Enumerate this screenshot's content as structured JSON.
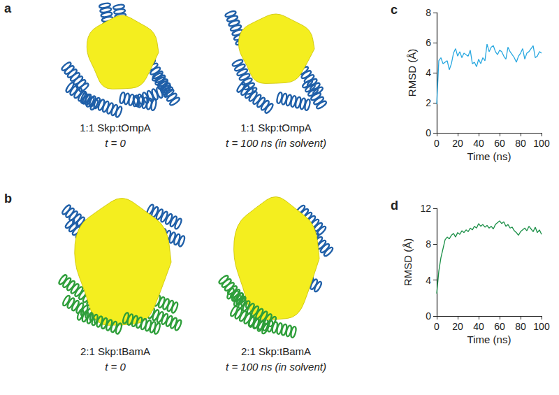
{
  "images": [
    {
      "panel": "a",
      "items": [
        {
          "caption": "1:1 Skp:tOmpA",
          "time": "t = 0"
        },
        {
          "caption": "1:1 Skp:tOmpA",
          "time": "t = 100 ns (in solvent)"
        }
      ]
    },
    {
      "panel": "b",
      "items": [
        {
          "caption": "2:1 Skp:tBamA",
          "time": "t = 0"
        },
        {
          "caption": "2:1 Skp:tBamA",
          "time": "t = 100 ns (in solvent)"
        }
      ]
    }
  ],
  "chart_data": [
    {
      "type": "line",
      "title": "c",
      "x_label": "Time (ns)",
      "y_label": "RMSD (Å)",
      "color": "#29a8e0",
      "grid": false,
      "xlim": [
        0,
        100
      ],
      "xticks": [
        0,
        20,
        40,
        60,
        80,
        100
      ],
      "ylim": [
        0,
        8
      ],
      "yticks": [
        0,
        2,
        4,
        6,
        8
      ],
      "x": [
        0,
        2,
        4,
        6,
        8,
        10,
        12,
        14,
        16,
        18,
        20,
        22,
        24,
        26,
        28,
        30,
        32,
        34,
        36,
        38,
        40,
        42,
        44,
        46,
        48,
        50,
        52,
        54,
        56,
        58,
        60,
        62,
        64,
        66,
        68,
        70,
        72,
        74,
        76,
        78,
        80,
        82,
        84,
        86,
        88,
        90,
        92,
        94,
        96,
        98,
        100
      ],
      "values": [
        1.9,
        4.8,
        5.0,
        4.6,
        4.7,
        4.8,
        4.2,
        4.6,
        5.3,
        5.6,
        5.1,
        5.4,
        5.0,
        5.3,
        5.2,
        5.1,
        5.5,
        4.6,
        4.7,
        4.4,
        4.9,
        4.6,
        5.0,
        4.8,
        5.9,
        5.4,
        5.7,
        5.8,
        5.4,
        5.2,
        5.5,
        5.4,
        5.1,
        4.9,
        5.7,
        5.4,
        5.2,
        5.0,
        4.7,
        5.1,
        5.3,
        5.6,
        4.9,
        5.3,
        5.4,
        5.6,
        5.8,
        5.0,
        5.1,
        5.4,
        5.3
      ]
    },
    {
      "type": "line",
      "title": "d",
      "x_label": "Time (ns)",
      "y_label": "RMSD (Å)",
      "color": "#1b8f47",
      "grid": false,
      "xlim": [
        0,
        100
      ],
      "xticks": [
        0,
        20,
        40,
        60,
        80,
        100
      ],
      "ylim": [
        0,
        12
      ],
      "yticks": [
        0,
        4,
        8,
        12
      ],
      "x": [
        0,
        2,
        4,
        6,
        8,
        10,
        12,
        14,
        16,
        18,
        20,
        22,
        24,
        26,
        28,
        30,
        32,
        34,
        36,
        38,
        40,
        42,
        44,
        46,
        48,
        50,
        52,
        54,
        56,
        58,
        60,
        62,
        64,
        66,
        68,
        70,
        72,
        74,
        76,
        78,
        80,
        82,
        84,
        86,
        88,
        90,
        92,
        94,
        96,
        98,
        100
      ],
      "values": [
        2.5,
        5.0,
        6.5,
        7.5,
        8.5,
        8.8,
        8.6,
        9.0,
        9.2,
        8.8,
        9.3,
        9.1,
        9.5,
        9.3,
        9.6,
        9.4,
        9.8,
        9.6,
        10.0,
        9.8,
        10.3,
        10.0,
        10.2,
        9.9,
        10.1,
        9.8,
        10.0,
        9.7,
        10.2,
        10.4,
        10.6,
        10.3,
        10.5,
        10.0,
        10.2,
        9.8,
        9.9,
        9.5,
        9.3,
        9.0,
        9.4,
        9.6,
        9.8,
        9.5,
        10.0,
        9.7,
        9.4,
        9.9,
        9.3,
        9.6,
        9.1
      ]
    }
  ]
}
